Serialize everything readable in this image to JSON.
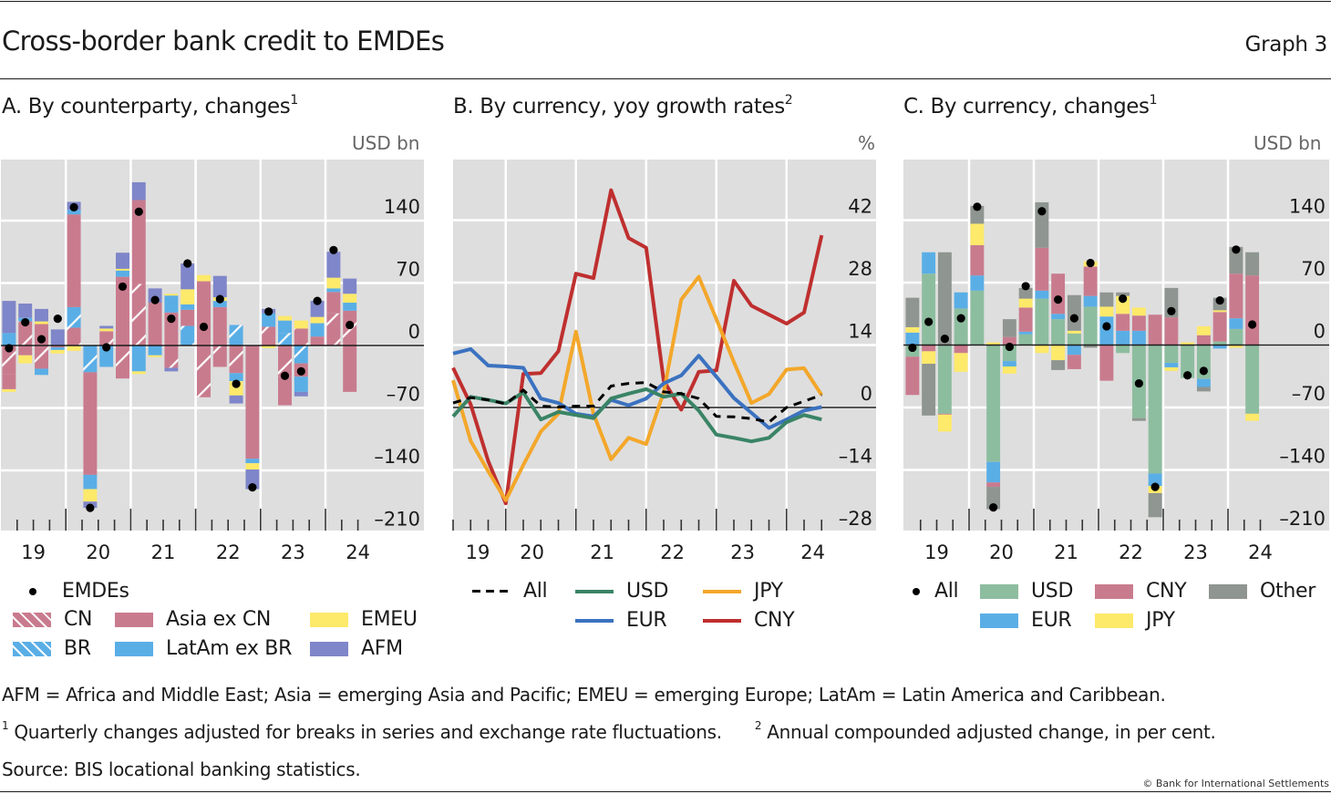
{
  "header": {
    "title": "Cross-border bank credit to EMDEs",
    "graph_number": "Graph 3"
  },
  "panels": [
    {
      "title": "A. By counterparty, changes",
      "sup": "1",
      "unit": "USD bn"
    },
    {
      "title": "B. By currency, yoy growth rates",
      "sup": "2",
      "unit": "%"
    },
    {
      "title": "C. By currency, changes",
      "sup": "1",
      "unit": "USD bn"
    }
  ],
  "legend_a": {
    "dot": "EMDEs",
    "items": [
      {
        "label": "CN",
        "key": "CN"
      },
      {
        "label": "Asia ex CN",
        "key": "Asia"
      },
      {
        "label": "EMEU",
        "key": "EMEU"
      },
      {
        "label": "BR",
        "key": "BR"
      },
      {
        "label": "LatAm ex BR",
        "key": "LatAm"
      },
      {
        "label": "AFM",
        "key": "AFM"
      }
    ]
  },
  "legend_b": {
    "items": [
      {
        "label": "All",
        "key": "All"
      },
      {
        "label": "USD",
        "key": "USD"
      },
      {
        "label": "JPY",
        "key": "JPY"
      },
      {
        "label": "EUR",
        "key": "EUR"
      },
      {
        "label": "CNY",
        "key": "CNY"
      }
    ]
  },
  "legend_c": {
    "dot": "All",
    "items": [
      {
        "label": "USD",
        "key": "USD"
      },
      {
        "label": "CNY",
        "key": "CNY"
      },
      {
        "label": "Other",
        "key": "Other"
      },
      {
        "label": "EUR",
        "key": "EUR"
      },
      {
        "label": "JPY",
        "key": "JPY"
      }
    ]
  },
  "colors": {
    "CN": "#c97b8e",
    "Asia": "#c97b8e",
    "EMEU": "#fde96a",
    "BR": "#5aaee6",
    "LatAm": "#5aaee6",
    "AFM": "#7f86c9",
    "USD_bar": "#8dbd9f",
    "EUR_bar": "#5aaee6",
    "CNY_bar": "#c97b8e",
    "JPY_bar": "#fde96a",
    "Other_bar": "#8f9590",
    "All_line": "#000000",
    "USD_line": "#3a8466",
    "EUR_line": "#3b72c0",
    "JPY_line": "#f3a72a",
    "CNY_line": "#bf2f2f",
    "plot_bg": "#dedede",
    "grid": "#ffffff"
  },
  "footnotes": {
    "abbrev": "AFM = Africa and Middle East; Asia = emerging Asia and Pacific; EMEU = emerging Europe; LatAm = Latin America and Caribbean.",
    "note1_mark": "1",
    "note1": "Quarterly changes adjusted for breaks in series and exchange rate fluctuations.",
    "note2_mark": "2",
    "note2": "Annual compounded adjusted change, in per cent.",
    "source": "Source: BIS locational banking statistics.",
    "copyright": "© Bank for International Settlements"
  },
  "chart_data": [
    {
      "type": "bar",
      "stacked": true,
      "title": "A. By counterparty, changes",
      "ylabel": "USD bn",
      "ylim": [
        -210,
        175
      ],
      "yticks": [
        140,
        70,
        0,
        -70,
        -140,
        -210
      ],
      "year_labels": [
        "19",
        "20",
        "21",
        "22",
        "23",
        "24"
      ],
      "x": [
        "2019Q1",
        "2019Q2",
        "2019Q3",
        "2019Q4",
        "2020Q1",
        "2020Q2",
        "2020Q3",
        "2020Q4",
        "2021Q1",
        "2021Q2",
        "2021Q3",
        "2021Q4",
        "2022Q1",
        "2022Q2",
        "2022Q3",
        "2022Q4",
        "2023Q1",
        "2023Q2",
        "2023Q3",
        "2023Q4",
        "2024Q1",
        "2024Q2"
      ],
      "series": [
        {
          "name": "CN",
          "key": "CN",
          "hatched": true,
          "values": [
            -32,
            27,
            -26,
            0,
            20,
            0,
            16,
            -37,
            69,
            0,
            -25,
            0,
            -58,
            -24,
            -24,
            0,
            21,
            -35,
            19,
            0,
            36,
            39
          ]
        },
        {
          "name": "BR",
          "key": "BR",
          "hatched": true,
          "values": [
            0,
            0,
            0,
            0,
            23,
            -30,
            0,
            0,
            0,
            0,
            0,
            22,
            0,
            0,
            23,
            0,
            0,
            14,
            -20,
            0,
            0,
            0
          ]
        },
        {
          "name": "Asia ex CN",
          "key": "Asia",
          "values": [
            -17,
            -11,
            24,
            -2,
            104,
            -115,
            0,
            77,
            94,
            48,
            37,
            18,
            72,
            43,
            -7,
            -127,
            0,
            -32,
            -15,
            10,
            24,
            -52
          ]
        },
        {
          "name": "LatAm ex BR",
          "key": "LatAm",
          "values": [
            14,
            4,
            -7,
            -3,
            5,
            -16,
            -24,
            7,
            -29,
            -11,
            19,
            6,
            0,
            7,
            -9,
            -5,
            15,
            14,
            -17,
            15,
            4,
            9
          ]
        },
        {
          "name": "EMEU",
          "key": "EMEU",
          "values": [
            -3,
            -9,
            3,
            -4,
            -6,
            -14,
            3,
            2,
            -3,
            -2,
            2,
            17,
            7,
            4,
            -16,
            -7,
            -3,
            5,
            9,
            7,
            12,
            10
          ]
        },
        {
          "name": "AFM",
          "key": "AFM",
          "values": [
            36,
            16,
            14,
            18,
            9,
            -7,
            3,
            18,
            20,
            16,
            -4,
            29,
            0,
            24,
            -9,
            -22,
            5,
            0,
            -5,
            18,
            29,
            17
          ]
        }
      ],
      "dots": {
        "name": "EMDEs",
        "values": [
          -3,
          26,
          7,
          30,
          155,
          -182,
          -2,
          66,
          150,
          51,
          30,
          92,
          21,
          52,
          -43,
          -159,
          38,
          -34,
          -29,
          50,
          107,
          23
        ]
      }
    },
    {
      "type": "line",
      "title": "B. By currency, yoy growth rates",
      "ylabel": "%",
      "ylim": [
        -28,
        56
      ],
      "yticks": [
        42,
        28,
        14,
        0,
        -14,
        -28
      ],
      "year_labels": [
        "19",
        "20",
        "21",
        "22",
        "23",
        "24"
      ],
      "x": [
        "2019Q1",
        "2019Q2",
        "2019Q3",
        "2019Q4",
        "2020Q1",
        "2020Q2",
        "2020Q3",
        "2020Q4",
        "2021Q1",
        "2021Q2",
        "2021Q3",
        "2021Q4",
        "2022Q1",
        "2022Q2",
        "2022Q3",
        "2022Q4",
        "2023Q1",
        "2023Q2",
        "2023Q3",
        "2023Q4",
        "2024Q1",
        "2024Q2"
      ],
      "series": [
        {
          "name": "All",
          "key": "All",
          "dashed": true,
          "values": [
            1.0,
            2.2,
            1.7,
            0.8,
            3.9,
            0.3,
            0.1,
            0.3,
            0.3,
            4.8,
            5.4,
            5.6,
            3.5,
            3.1,
            2.0,
            -2.0,
            -2.1,
            -2.5,
            -3.3,
            0.0,
            1.4,
            2.8
          ]
        },
        {
          "name": "USD",
          "key": "USD",
          "values": [
            -2.0,
            2.4,
            1.7,
            0.9,
            3.4,
            -2.7,
            -1.0,
            -1.7,
            -2.4,
            2.0,
            3.1,
            4.1,
            2.4,
            3.1,
            -0.7,
            -6.1,
            -6.8,
            -7.6,
            -6.8,
            -3.3,
            -1.7,
            -2.7
          ]
        },
        {
          "name": "EUR",
          "key": "EUR",
          "values": [
            12.1,
            13.1,
            9.4,
            9.2,
            8.9,
            2.0,
            1.0,
            -1.4,
            -2.0,
            1.7,
            0.5,
            2.0,
            5.4,
            7.2,
            11.6,
            6.9,
            2.1,
            -1.2,
            -4.6,
            -2.7,
            -0.7,
            0.1
          ]
        },
        {
          "name": "JPY",
          "key": "JPY",
          "values": [
            6.1,
            -7.5,
            -14.3,
            -20.8,
            -12.9,
            -5.4,
            -1.4,
            17.0,
            -1.4,
            -11.6,
            -6.8,
            -8.2,
            3.4,
            24.2,
            29.3,
            19.8,
            10.2,
            1.0,
            3.0,
            8.5,
            8.8,
            2.8
          ]
        },
        {
          "name": "CNY",
          "key": "CNY",
          "values": [
            8.9,
            0.7,
            -12.0,
            -21.5,
            7.5,
            7.7,
            12.6,
            30.0,
            29.0,
            48.7,
            38.0,
            35.8,
            6.0,
            -0.5,
            8.0,
            8.3,
            28.4,
            22.8,
            20.8,
            18.8,
            21.3,
            38.6
          ]
        }
      ]
    },
    {
      "type": "bar",
      "stacked": true,
      "title": "C. By currency, changes",
      "ylabel": "USD bn",
      "ylim": [
        -210,
        175
      ],
      "yticks": [
        140,
        70,
        0,
        -70,
        -140,
        -210
      ],
      "year_labels": [
        "19",
        "20",
        "21",
        "22",
        "23",
        "24"
      ],
      "x": [
        "2019Q1",
        "2019Q2",
        "2019Q3",
        "2019Q4",
        "2020Q1",
        "2020Q2",
        "2020Q3",
        "2020Q4",
        "2021Q1",
        "2021Q2",
        "2021Q3",
        "2021Q4",
        "2022Q1",
        "2022Q2",
        "2022Q3",
        "2022Q4",
        "2023Q1",
        "2023Q2",
        "2023Q3",
        "2023Q4",
        "2024Q1",
        "2024Q2"
      ],
      "series": [
        {
          "name": "USD",
          "key": "USD_bar",
          "values": [
            -13,
            80,
            -77,
            41,
            61,
            -131,
            -18,
            12,
            52,
            29,
            13,
            43,
            0,
            -9,
            -82,
            -144,
            -20,
            -37,
            -38,
            4,
            18,
            -77
          ]
        },
        {
          "name": "EUR",
          "key": "EUR_bar",
          "values": [
            14,
            24,
            0,
            18,
            17,
            -23,
            -6,
            3,
            9,
            6,
            -11,
            12,
            32,
            16,
            16,
            -14,
            -5,
            0,
            -9,
            -4,
            12,
            0
          ]
        },
        {
          "name": "CNY",
          "key": "CNY_bar",
          "values": [
            -43,
            -7,
            -1,
            -9,
            34,
            -5,
            9,
            27,
            48,
            45,
            -16,
            33,
            -40,
            19,
            17,
            34,
            31,
            0,
            11,
            33,
            50,
            78
          ]
        },
        {
          "name": "JPY",
          "key": "JPY_bar",
          "values": [
            6,
            -14,
            -19,
            -21,
            24,
            3,
            -8,
            10,
            -9,
            -17,
            3,
            6,
            11,
            20,
            9,
            -8,
            -4,
            3,
            10,
            2,
            -3,
            -8
          ]
        },
        {
          "name": "Other",
          "key": "Other_bar",
          "values": [
            33,
            -58,
            104,
            0,
            20,
            -25,
            20,
            12,
            51,
            -11,
            40,
            -3,
            16,
            4,
            -3,
            -27,
            33,
            0,
            -5,
            14,
            30,
            26
          ]
        }
      ],
      "dots": {
        "name": "All",
        "values": [
          -3,
          26,
          7,
          30,
          155,
          -182,
          -2,
          66,
          150,
          51,
          30,
          92,
          21,
          52,
          -43,
          -159,
          38,
          -34,
          -29,
          50,
          107,
          23
        ]
      }
    }
  ]
}
